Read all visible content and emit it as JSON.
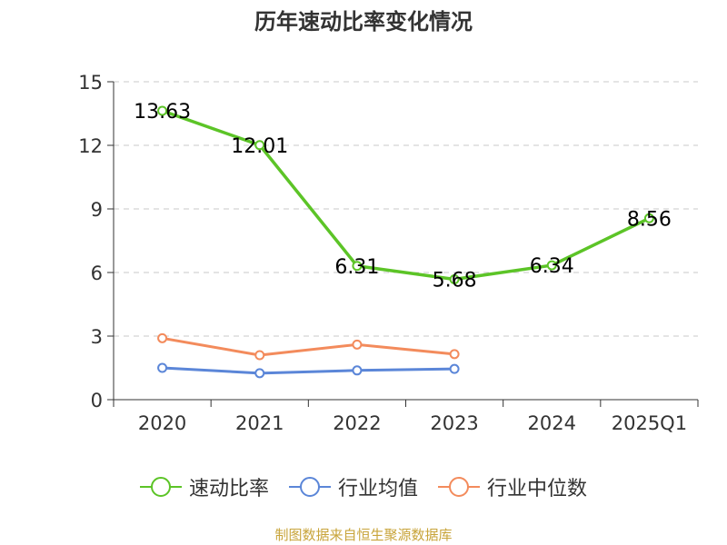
{
  "title": "历年速动比率变化情况",
  "source": "制图数据来自恒生聚源数据库",
  "chart_data": {
    "type": "line",
    "title": "历年速动比率变化情况",
    "categories": [
      "2020",
      "2021",
      "2022",
      "2023",
      "2024",
      "2025Q1"
    ],
    "ylim": [
      0,
      15
    ],
    "yticks": [
      0,
      3,
      6,
      9,
      12,
      15
    ],
    "grid": true,
    "legend_position": "bottom",
    "series": [
      {
        "name": "速动比率",
        "color": "#5cc427",
        "values": [
          13.63,
          12.01,
          6.31,
          5.68,
          6.34,
          8.56
        ],
        "labels": [
          "13.63",
          "12.01",
          "6.31",
          "5.68",
          "6.34",
          "8.56"
        ]
      },
      {
        "name": "行业均值",
        "color": "#5b86d8",
        "values": [
          1.5,
          1.25,
          1.38,
          1.45,
          null,
          null
        ]
      },
      {
        "name": "行业中位数",
        "color": "#f38b5c",
        "values": [
          2.9,
          2.1,
          2.6,
          2.15,
          null,
          null
        ]
      }
    ]
  }
}
